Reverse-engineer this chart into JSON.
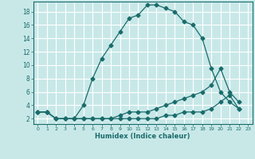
{
  "xlabel": "Humidex (Indice chaleur)",
  "background_color": "#c8e8e8",
  "grid_color": "#ffffff",
  "line_color": "#1a6b6b",
  "xlim": [
    -0.5,
    23.5
  ],
  "ylim": [
    1.2,
    19.5
  ],
  "xticks": [
    0,
    1,
    2,
    3,
    4,
    5,
    6,
    7,
    8,
    9,
    10,
    11,
    12,
    13,
    14,
    15,
    16,
    17,
    18,
    19,
    20,
    21,
    22,
    23
  ],
  "yticks": [
    2,
    4,
    6,
    8,
    10,
    12,
    14,
    16,
    18
  ],
  "series1_x": [
    0,
    1,
    2,
    3,
    4,
    5,
    6,
    7,
    8,
    9,
    10,
    11,
    12,
    13,
    14,
    15,
    16,
    17,
    18,
    19,
    20,
    21,
    22
  ],
  "series1_y": [
    3,
    3,
    2,
    2,
    2,
    4,
    8,
    11,
    13,
    15,
    17,
    17.5,
    19,
    19,
    18.5,
    18,
    16.5,
    16,
    14,
    9.5,
    6,
    4.5,
    3.5
  ],
  "series2_x": [
    0,
    1,
    2,
    3,
    4,
    5,
    6,
    7,
    8,
    9,
    10,
    11,
    12,
    13,
    14,
    15,
    16,
    17,
    18,
    19,
    20,
    21,
    22
  ],
  "series2_y": [
    3,
    3,
    2,
    2,
    2,
    2,
    2,
    2,
    2,
    2.5,
    3,
    3,
    3,
    3.5,
    4,
    4.5,
    5,
    5.5,
    6,
    7,
    9.5,
    6,
    4.5
  ],
  "series3_x": [
    0,
    1,
    2,
    3,
    4,
    5,
    6,
    7,
    8,
    9,
    10,
    11,
    12,
    13,
    14,
    15,
    16,
    17,
    18,
    19,
    20,
    21,
    22
  ],
  "series3_y": [
    3,
    3,
    2,
    2,
    2,
    2,
    2,
    2,
    2,
    2,
    2,
    2,
    2,
    2,
    2.5,
    2.5,
    3,
    3,
    3,
    3.5,
    4.5,
    5.5,
    3.5
  ]
}
